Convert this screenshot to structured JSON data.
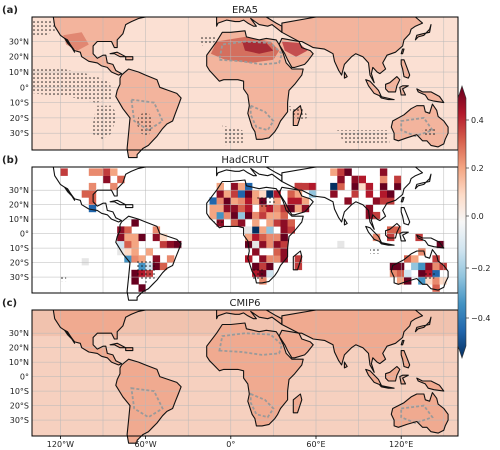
{
  "panels": [
    {
      "letter": "(a)",
      "title": "ERA5",
      "style": "era5"
    },
    {
      "letter": "(b)",
      "title": "HadCRUT",
      "style": "hadcrut"
    },
    {
      "letter": "(c)",
      "title": "CMIP6",
      "style": "cmip6"
    }
  ],
  "lat_ticks": [
    "30°N",
    "20°N",
    "10°N",
    "0°",
    "10°S",
    "20°S",
    "30°S"
  ],
  "lon_ticks": [
    "120°W",
    "60°W",
    "0°",
    "60°E",
    "120°E"
  ],
  "colorbar": {
    "ticks": [
      "0.4",
      "0.2",
      "0.0",
      "−0.2",
      "−0.4"
    ],
    "colors": [
      "#67001f",
      "#b2182b",
      "#d6604d",
      "#f4a582",
      "#fddbc7",
      "#f7f7f7",
      "#d1e5f0",
      "#92c5de",
      "#4393c3",
      "#2166ac",
      "#053061"
    ]
  }
}
